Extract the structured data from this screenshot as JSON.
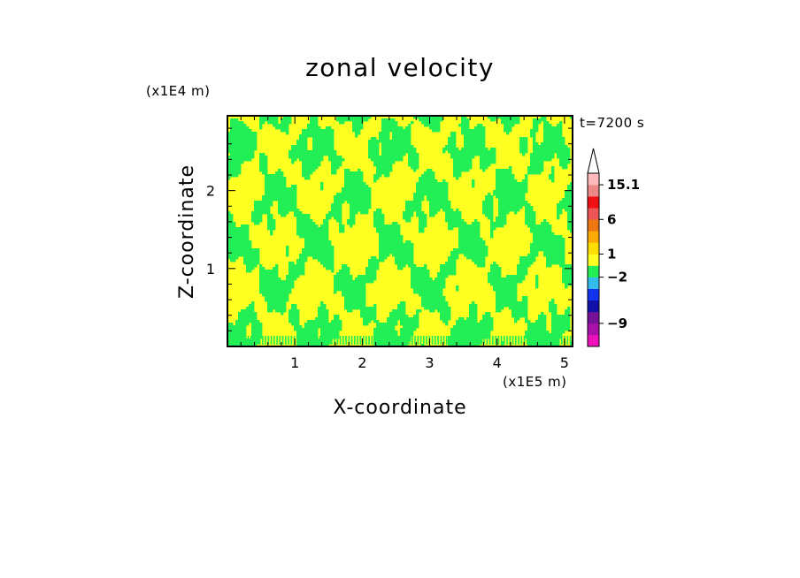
{
  "chart_data": {
    "type": "heatmap",
    "title": "zonal velocity",
    "xlabel": "X-coordinate",
    "ylabel": "Z-coordinate",
    "x_unit": "(x1E5 m)",
    "y_unit": "(x1E4 m)",
    "time_label": "t=7200 s",
    "xlim": [
      0,
      5.12
    ],
    "ylim": [
      0,
      2.96
    ],
    "x_ticks": [
      {
        "value": 1,
        "label": "1"
      },
      {
        "value": 2,
        "label": "2"
      },
      {
        "value": 3,
        "label": "3"
      },
      {
        "value": 4,
        "label": "4"
      },
      {
        "value": 5,
        "label": "5"
      }
    ],
    "y_ticks": [
      {
        "value": 1,
        "label": "1"
      },
      {
        "value": 2,
        "label": "2"
      }
    ],
    "field_colors": {
      "low": "#22ee55",
      "high": "#ffff22"
    },
    "colorbar": {
      "extend_max": true,
      "bands": [
        {
          "color": "#ee11bb"
        },
        {
          "color": "#aa11aa"
        },
        {
          "color": "#771199"
        },
        {
          "color": "#1111aa"
        },
        {
          "color": "#1133ee"
        },
        {
          "color": "#33bbee"
        },
        {
          "color": "#22ee55"
        },
        {
          "color": "#ffff22"
        },
        {
          "color": "#ffdd00"
        },
        {
          "color": "#ffaa00"
        },
        {
          "color": "#ee7711"
        },
        {
          "color": "#ee5555"
        },
        {
          "color": "#ee1111"
        },
        {
          "color": "#ee8888"
        },
        {
          "color": "#ffbbbb"
        }
      ],
      "labels": [
        {
          "value": "-9",
          "label": "−9",
          "band_edge": 2
        },
        {
          "value": "-2",
          "label": "−2",
          "band_edge": 6
        },
        {
          "value": "1",
          "label": "1",
          "band_edge": 8
        },
        {
          "value": "6",
          "label": "6",
          "band_edge": 11
        },
        {
          "value": "15.1",
          "label": "15.1",
          "band_edge": 14
        }
      ]
    }
  }
}
